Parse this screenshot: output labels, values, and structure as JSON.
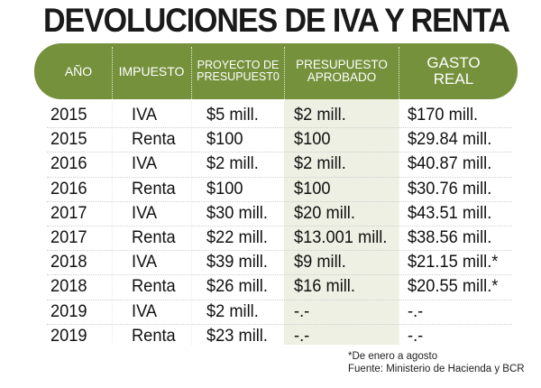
{
  "title": "DEVOLUCIONES DE IVA Y RENTA",
  "headers": {
    "anio": "AÑO",
    "impuesto": "IMPUESTO",
    "proyecto_1": "PROYECTO DE",
    "proyecto_2": "PRESUPUEST0",
    "aprobado_1": "PRESUPUESTO",
    "aprobado_2": "APROBADO",
    "gasto_1": "GASTO",
    "gasto_2": "REAL"
  },
  "rows": [
    [
      "2015",
      "IVA",
      "$5 mill.",
      "$2 mill.",
      "$170 mill."
    ],
    [
      "2015",
      "Renta",
      "$100",
      "$100",
      "$29.84 mill."
    ],
    [
      "2016",
      "IVA",
      "$2 mill.",
      "$2 mill.",
      "$40.87 mill."
    ],
    [
      "2016",
      "Renta",
      "$100",
      "$100",
      "$30.76 mill."
    ],
    [
      "2017",
      "IVA",
      "$30 mill.",
      "$20 mill.",
      "$43.51 mill."
    ],
    [
      "2017",
      "Renta",
      "$22 mill.",
      "$13.001 mill.",
      "$38.56 mill."
    ],
    [
      "2018",
      "IVA",
      "$39 mill.",
      "$9 mill.",
      "$21.15 mill.*"
    ],
    [
      "2018",
      "Renta",
      "$26 mill.",
      "$16 mill.",
      "$20.55 mill.*"
    ],
    [
      "2019",
      "IVA",
      "$2 mill.",
      "-.-",
      " -.-"
    ],
    [
      "2019",
      "Renta",
      "$23 mill.",
      "-.-",
      " -.-"
    ]
  ],
  "notes": {
    "footnote": "*De enero a agosto",
    "source": "Fuente: Ministerio de Hacienda y BCR"
  },
  "colors": {
    "header_green": "#75913c",
    "shade": "#eef0e4"
  }
}
